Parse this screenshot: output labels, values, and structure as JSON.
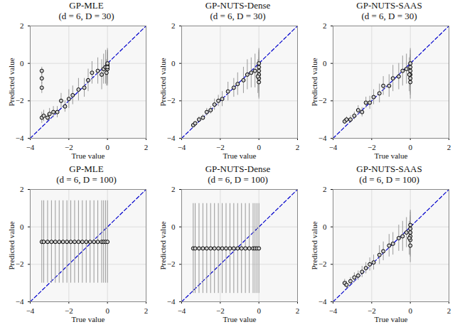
{
  "chart_data": [
    {
      "type": "scatter",
      "title": "GP-MLE",
      "subtitle": "(d = 6, D = 30)",
      "xlabel": "True value",
      "ylabel": "Predicted value",
      "xlim": [
        -4,
        2
      ],
      "ylim": [
        -4,
        2
      ],
      "xticks": [
        -4,
        -2,
        0,
        2
      ],
      "yticks": [
        -4,
        -2,
        0,
        2
      ],
      "grid": true,
      "series": [
        {
          "type": "line",
          "color": "#0000cc",
          "line_style": "dashed",
          "x": [
            -4,
            2
          ],
          "values": [
            -4,
            2
          ]
        },
        {
          "type": "scatter",
          "color": "#000000",
          "marker": "circle",
          "x": [
            -3.4,
            -3.4,
            -3.4,
            -3.4,
            -3.3,
            -3.1,
            -3.0,
            -2.8,
            -2.6,
            -2.4,
            -2.2,
            -2.0,
            -1.8,
            -1.5,
            -1.2,
            -1.0,
            -0.8,
            -0.5,
            -0.3,
            -0.2,
            -0.1,
            0,
            0,
            0,
            -0.05,
            0
          ],
          "values": [
            -0.4,
            -0.8,
            -1.3,
            -2.9,
            -2.8,
            -2.9,
            -2.7,
            -2.6,
            -2.6,
            -2.0,
            -2.3,
            -1.9,
            -1.7,
            -1.4,
            -1.3,
            -0.9,
            -0.5,
            -0.4,
            -0.6,
            -0.3,
            -0.2,
            -0.1,
            -0.3,
            0,
            -0.5,
            -0.2
          ],
          "errors": [
            0.2,
            0.3,
            0.3,
            0.3,
            0.3,
            0.2,
            0.3,
            0.3,
            0.3,
            0.4,
            0.3,
            0.5,
            0.5,
            0.6,
            0.5,
            0.6,
            0.6,
            0.7,
            0.8,
            0.8,
            0.9,
            0.8,
            0.9,
            0.8,
            0.7,
            0.9
          ]
        }
      ]
    },
    {
      "type": "scatter",
      "title": "GP-NUTS-Dense",
      "subtitle": "(d = 6, D = 30)",
      "xlabel": "True value",
      "ylabel": "Predicted value",
      "xlim": [
        -4,
        2
      ],
      "ylim": [
        -4,
        2
      ],
      "xticks": [
        -4,
        -2,
        0,
        2
      ],
      "yticks": [
        -4,
        -2,
        0,
        2
      ],
      "grid": true,
      "series": [
        {
          "type": "line",
          "color": "#0000cc",
          "line_style": "dashed",
          "x": [
            -4,
            2
          ],
          "values": [
            -4,
            2
          ]
        },
        {
          "type": "scatter",
          "color": "#000000",
          "marker": "circle",
          "x": [
            -3.4,
            -3.3,
            -3.1,
            -2.9,
            -2.7,
            -2.5,
            -2.3,
            -2.1,
            -1.9,
            -1.6,
            -1.3,
            -1.1,
            -0.8,
            -0.6,
            -0.4,
            -0.2,
            0,
            0,
            0,
            0,
            0,
            0,
            -0.05
          ],
          "values": [
            -3.3,
            -3.2,
            -3.0,
            -2.9,
            -2.6,
            -2.5,
            -2.2,
            -2.0,
            -1.9,
            -1.5,
            -1.3,
            -1.1,
            -0.9,
            -0.6,
            -0.5,
            -0.4,
            -1.0,
            -0.8,
            -0.6,
            -0.4,
            -0.2,
            0,
            -0.7
          ],
          "errors": [
            0.1,
            0.1,
            0.15,
            0.15,
            0.2,
            0.2,
            0.3,
            0.3,
            0.4,
            0.5,
            0.5,
            0.6,
            0.7,
            0.8,
            0.8,
            0.9,
            0.9,
            1.0,
            0.9,
            1.0,
            0.9,
            0.8,
            0.9
          ]
        }
      ]
    },
    {
      "type": "scatter",
      "title": "GP-NUTS-SAAS",
      "subtitle": "(d = 6, D = 30)",
      "xlabel": "True value",
      "ylabel": "Predicted value",
      "xlim": [
        -4,
        2
      ],
      "ylim": [
        -4,
        2
      ],
      "xticks": [
        -4,
        -2,
        0,
        2
      ],
      "yticks": [
        -4,
        -2,
        0,
        2
      ],
      "grid": true,
      "series": [
        {
          "type": "line",
          "color": "#0000cc",
          "line_style": "dashed",
          "x": [
            -4,
            2
          ],
          "values": [
            -4,
            2
          ]
        },
        {
          "type": "scatter",
          "color": "#000000",
          "marker": "circle",
          "x": [
            -3.4,
            -3.3,
            -3.1,
            -2.9,
            -2.7,
            -2.5,
            -2.3,
            -2.1,
            -1.9,
            -1.6,
            -1.4,
            -1.1,
            -0.9,
            -0.6,
            -0.4,
            -0.2,
            0,
            0,
            0,
            0,
            0,
            0,
            -0.05
          ],
          "values": [
            -3.1,
            -3.0,
            -3.0,
            -2.8,
            -2.5,
            -2.6,
            -2.1,
            -2.1,
            -1.8,
            -1.6,
            -1.2,
            -1.2,
            -0.8,
            -0.7,
            -0.4,
            -0.3,
            -1.0,
            -0.8,
            -0.6,
            -0.4,
            -0.2,
            0,
            -0.6
          ],
          "errors": [
            0.15,
            0.15,
            0.2,
            0.2,
            0.25,
            0.25,
            0.3,
            0.35,
            0.4,
            0.5,
            0.5,
            0.6,
            0.7,
            0.7,
            0.8,
            0.8,
            0.9,
            0.9,
            1.0,
            0.9,
            0.9,
            0.8,
            0.9
          ]
        }
      ]
    },
    {
      "type": "scatter",
      "title": "GP-MLE",
      "subtitle": "(d = 6, D = 100)",
      "xlabel": "True value",
      "ylabel": "Predicted value",
      "xlim": [
        -4,
        2
      ],
      "ylim": [
        -4,
        2
      ],
      "xticks": [
        -4,
        -2,
        0,
        2
      ],
      "yticks": [
        -4,
        -2,
        0,
        2
      ],
      "grid": true,
      "series": [
        {
          "type": "line",
          "color": "#0000cc",
          "line_style": "dashed",
          "x": [
            -4,
            2
          ],
          "values": [
            -4,
            2
          ]
        },
        {
          "type": "scatter",
          "color": "#000000",
          "marker": "circle",
          "x": [
            -3.4,
            -3.3,
            -3.1,
            -2.9,
            -2.7,
            -2.5,
            -2.3,
            -2.1,
            -1.9,
            -1.7,
            -1.5,
            -1.3,
            -1.1,
            -0.9,
            -0.7,
            -0.5,
            -0.3,
            -0.2,
            -0.1,
            0
          ],
          "values": [
            -0.8,
            -0.8,
            -0.8,
            -0.8,
            -0.8,
            -0.8,
            -0.8,
            -0.8,
            -0.8,
            -0.8,
            -0.8,
            -0.8,
            -0.8,
            -0.8,
            -0.8,
            -0.8,
            -0.8,
            -0.8,
            -0.8,
            -0.8
          ],
          "errors": [
            2.2,
            2.2,
            2.2,
            2.2,
            2.2,
            2.2,
            2.2,
            2.2,
            2.2,
            2.2,
            2.2,
            2.2,
            2.2,
            2.2,
            2.2,
            2.2,
            2.2,
            2.2,
            2.2,
            2.2
          ]
        }
      ]
    },
    {
      "type": "scatter",
      "title": "GP-NUTS-Dense",
      "subtitle": "(d = 6, D = 100)",
      "xlabel": "True value",
      "ylabel": "Predicted value",
      "xlim": [
        -4,
        2
      ],
      "ylim": [
        -4,
        2
      ],
      "xticks": [
        -4,
        -2,
        0,
        2
      ],
      "yticks": [
        -4,
        -2,
        0,
        2
      ],
      "grid": true,
      "series": [
        {
          "type": "line",
          "color": "#0000cc",
          "line_style": "dashed",
          "x": [
            -4,
            2
          ],
          "values": [
            -4,
            2
          ]
        },
        {
          "type": "scatter",
          "color": "#000000",
          "marker": "circle",
          "x": [
            -3.4,
            -3.3,
            -3.1,
            -2.9,
            -2.7,
            -2.5,
            -2.3,
            -2.1,
            -1.9,
            -1.7,
            -1.5,
            -1.3,
            -1.1,
            -0.9,
            -0.7,
            -0.5,
            -0.3,
            -0.2,
            -0.1,
            0
          ],
          "values": [
            -1.15,
            -1.15,
            -1.15,
            -1.15,
            -1.15,
            -1.15,
            -1.15,
            -1.15,
            -1.15,
            -1.15,
            -1.15,
            -1.15,
            -1.15,
            -1.15,
            -1.15,
            -1.15,
            -1.15,
            -1.15,
            -1.15,
            -1.15
          ],
          "errors": [
            2.4,
            2.4,
            2.4,
            2.4,
            2.4,
            2.4,
            2.4,
            2.4,
            2.4,
            2.4,
            2.4,
            2.4,
            2.4,
            2.4,
            2.4,
            2.4,
            2.4,
            2.4,
            2.4,
            2.4
          ]
        }
      ]
    },
    {
      "type": "scatter",
      "title": "GP-NUTS-SAAS",
      "subtitle": "(d = 6, D = 100)",
      "xlabel": "True value",
      "ylabel": "Predicted value",
      "xlim": [
        -4,
        2
      ],
      "ylim": [
        -4,
        2
      ],
      "xticks": [
        -4,
        -2,
        0,
        2
      ],
      "yticks": [
        -4,
        -2,
        0,
        2
      ],
      "grid": true,
      "series": [
        {
          "type": "line",
          "color": "#0000cc",
          "line_style": "dashed",
          "x": [
            -4,
            2
          ],
          "values": [
            -4,
            2
          ]
        },
        {
          "type": "scatter",
          "color": "#000000",
          "marker": "circle",
          "x": [
            -3.4,
            -3.3,
            -3.1,
            -2.9,
            -2.7,
            -2.5,
            -2.3,
            -2.1,
            -1.9,
            -1.6,
            -1.4,
            -1.1,
            -0.9,
            -0.6,
            -0.4,
            -0.2,
            0,
            0,
            0,
            0,
            0,
            0,
            -0.05
          ],
          "values": [
            -3.0,
            -3.1,
            -2.9,
            -2.7,
            -2.6,
            -2.4,
            -2.2,
            -2.0,
            -1.9,
            -1.5,
            -1.3,
            -1.0,
            -0.9,
            -0.6,
            -0.5,
            -0.3,
            -1.0,
            -0.7,
            -0.5,
            -0.3,
            -0.1,
            0.1,
            -0.6
          ],
          "errors": [
            0.2,
            0.2,
            0.2,
            0.25,
            0.25,
            0.3,
            0.3,
            0.35,
            0.4,
            0.5,
            0.5,
            0.6,
            0.6,
            0.7,
            0.8,
            0.8,
            0.9,
            0.9,
            1.0,
            0.9,
            0.9,
            0.8,
            0.9
          ]
        }
      ]
    }
  ]
}
